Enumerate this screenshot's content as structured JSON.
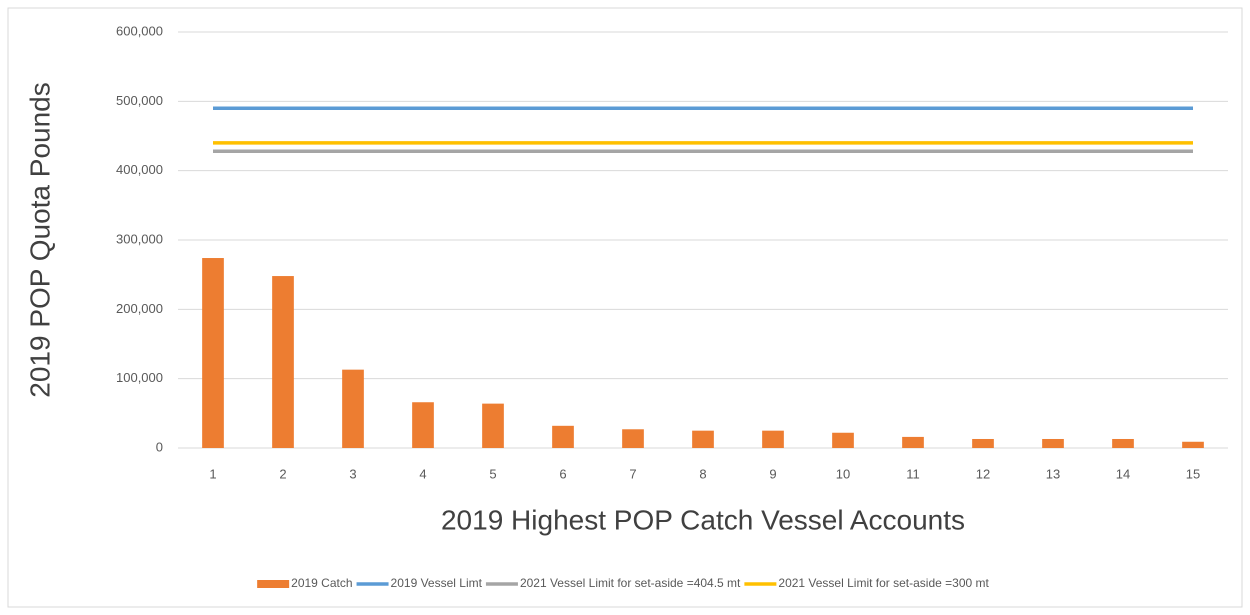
{
  "chart_data": {
    "type": "bar",
    "x_label": "2019 Highest POP Catch  Vessel Accounts",
    "y_label": "2019 POP Quota Pounds",
    "categories": [
      "1",
      "2",
      "3",
      "4",
      "5",
      "6",
      "7",
      "8",
      "9",
      "10",
      "11",
      "12",
      "13",
      "14",
      "15"
    ],
    "series": [
      {
        "name": "2019 Catch",
        "type": "bar",
        "color": "#ed7d31",
        "values": [
          274000,
          248000,
          113000,
          66000,
          64000,
          32000,
          27000,
          25000,
          25000,
          22000,
          16000,
          13000,
          13000,
          13000,
          9000
        ]
      },
      {
        "name": "2019 Vessel Limt",
        "type": "line",
        "color": "#5b9bd5",
        "values": [
          490000,
          490000,
          490000,
          490000,
          490000,
          490000,
          490000,
          490000,
          490000,
          490000,
          490000,
          490000,
          490000,
          490000,
          490000
        ]
      },
      {
        "name": "2021 Vessel Limit for set-aside =404.5 mt",
        "type": "line",
        "color": "#a5a5a5",
        "values": [
          428000,
          428000,
          428000,
          428000,
          428000,
          428000,
          428000,
          428000,
          428000,
          428000,
          428000,
          428000,
          428000,
          428000,
          428000
        ]
      },
      {
        "name": "2021 Vessel Limit for set-aside =300 mt",
        "type": "line",
        "color": "#ffc000",
        "values": [
          440000,
          440000,
          440000,
          440000,
          440000,
          440000,
          440000,
          440000,
          440000,
          440000,
          440000,
          440000,
          440000,
          440000,
          440000
        ]
      }
    ],
    "ylim": [
      0,
      600000
    ],
    "yticks": [
      0,
      {
        "value": 100000,
        "label": "100,000"
      },
      {
        "value": 200000,
        "label": "200,000"
      },
      {
        "value": 300000,
        "label": "300,000"
      },
      {
        "value": 400000,
        "label": "400,000"
      },
      {
        "value": 500000,
        "label": "500,000"
      },
      {
        "value": 600000,
        "label": "600,000"
      }
    ],
    "grid": true,
    "legend": "bottom"
  }
}
